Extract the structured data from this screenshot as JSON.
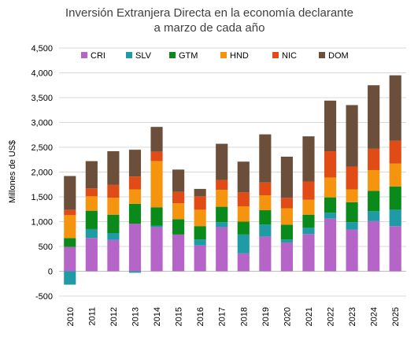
{
  "chart_data": {
    "type": "bar",
    "stacked": true,
    "title": [
      "Inversión Extranjera Directa en la economía declarante",
      "a marzo de cada año"
    ],
    "ylabel": "Millones de US$",
    "xlabel": "",
    "ylim": [
      -500,
      4500
    ],
    "yticks": [
      -500,
      0,
      500,
      1000,
      1500,
      2000,
      2500,
      3000,
      3500,
      4000,
      4500
    ],
    "ytick_labels": [
      "-500",
      "0",
      "500",
      "1,000",
      "1,500",
      "2,000",
      "2,500",
      "3,000",
      "3,500",
      "4,000",
      "4,500"
    ],
    "grid": true,
    "legend_position": "top-inside",
    "categories": [
      "2010",
      "2011",
      "2012",
      "2013",
      "2014",
      "2015",
      "2016",
      "2017",
      "2018",
      "2019",
      "2020",
      "2021",
      "2022",
      "2023",
      "2024",
      "2025"
    ],
    "series": [
      {
        "name": "CRI",
        "color": "#b565c8",
        "values": [
          490,
          670,
          630,
          960,
          890,
          740,
          520,
          890,
          360,
          700,
          580,
          750,
          1060,
          840,
          1010,
          910
        ]
      },
      {
        "name": "SLV",
        "color": "#1f9ba5",
        "values": [
          -270,
          180,
          140,
          -30,
          30,
          0,
          120,
          100,
          380,
          240,
          60,
          130,
          120,
          150,
          200,
          330
        ]
      },
      {
        "name": "GTM",
        "color": "#0a8a1a",
        "values": [
          180,
          370,
          370,
          400,
          370,
          310,
          270,
          310,
          260,
          290,
          300,
          260,
          310,
          400,
          410,
          470
        ]
      },
      {
        "name": "HND",
        "color": "#f5950f",
        "values": [
          460,
          290,
          340,
          290,
          930,
          320,
          330,
          340,
          310,
          300,
          330,
          300,
          400,
          260,
          420,
          460
        ]
      },
      {
        "name": "NIC",
        "color": "#e04b16",
        "values": [
          110,
          160,
          260,
          260,
          190,
          230,
          270,
          200,
          280,
          260,
          210,
          370,
          530,
          460,
          430,
          460
        ]
      },
      {
        "name": "DOM",
        "color": "#6b4f3a",
        "values": [
          680,
          550,
          680,
          540,
          500,
          450,
          150,
          730,
          620,
          970,
          830,
          910,
          1020,
          1240,
          1280,
          1320
        ]
      }
    ]
  }
}
